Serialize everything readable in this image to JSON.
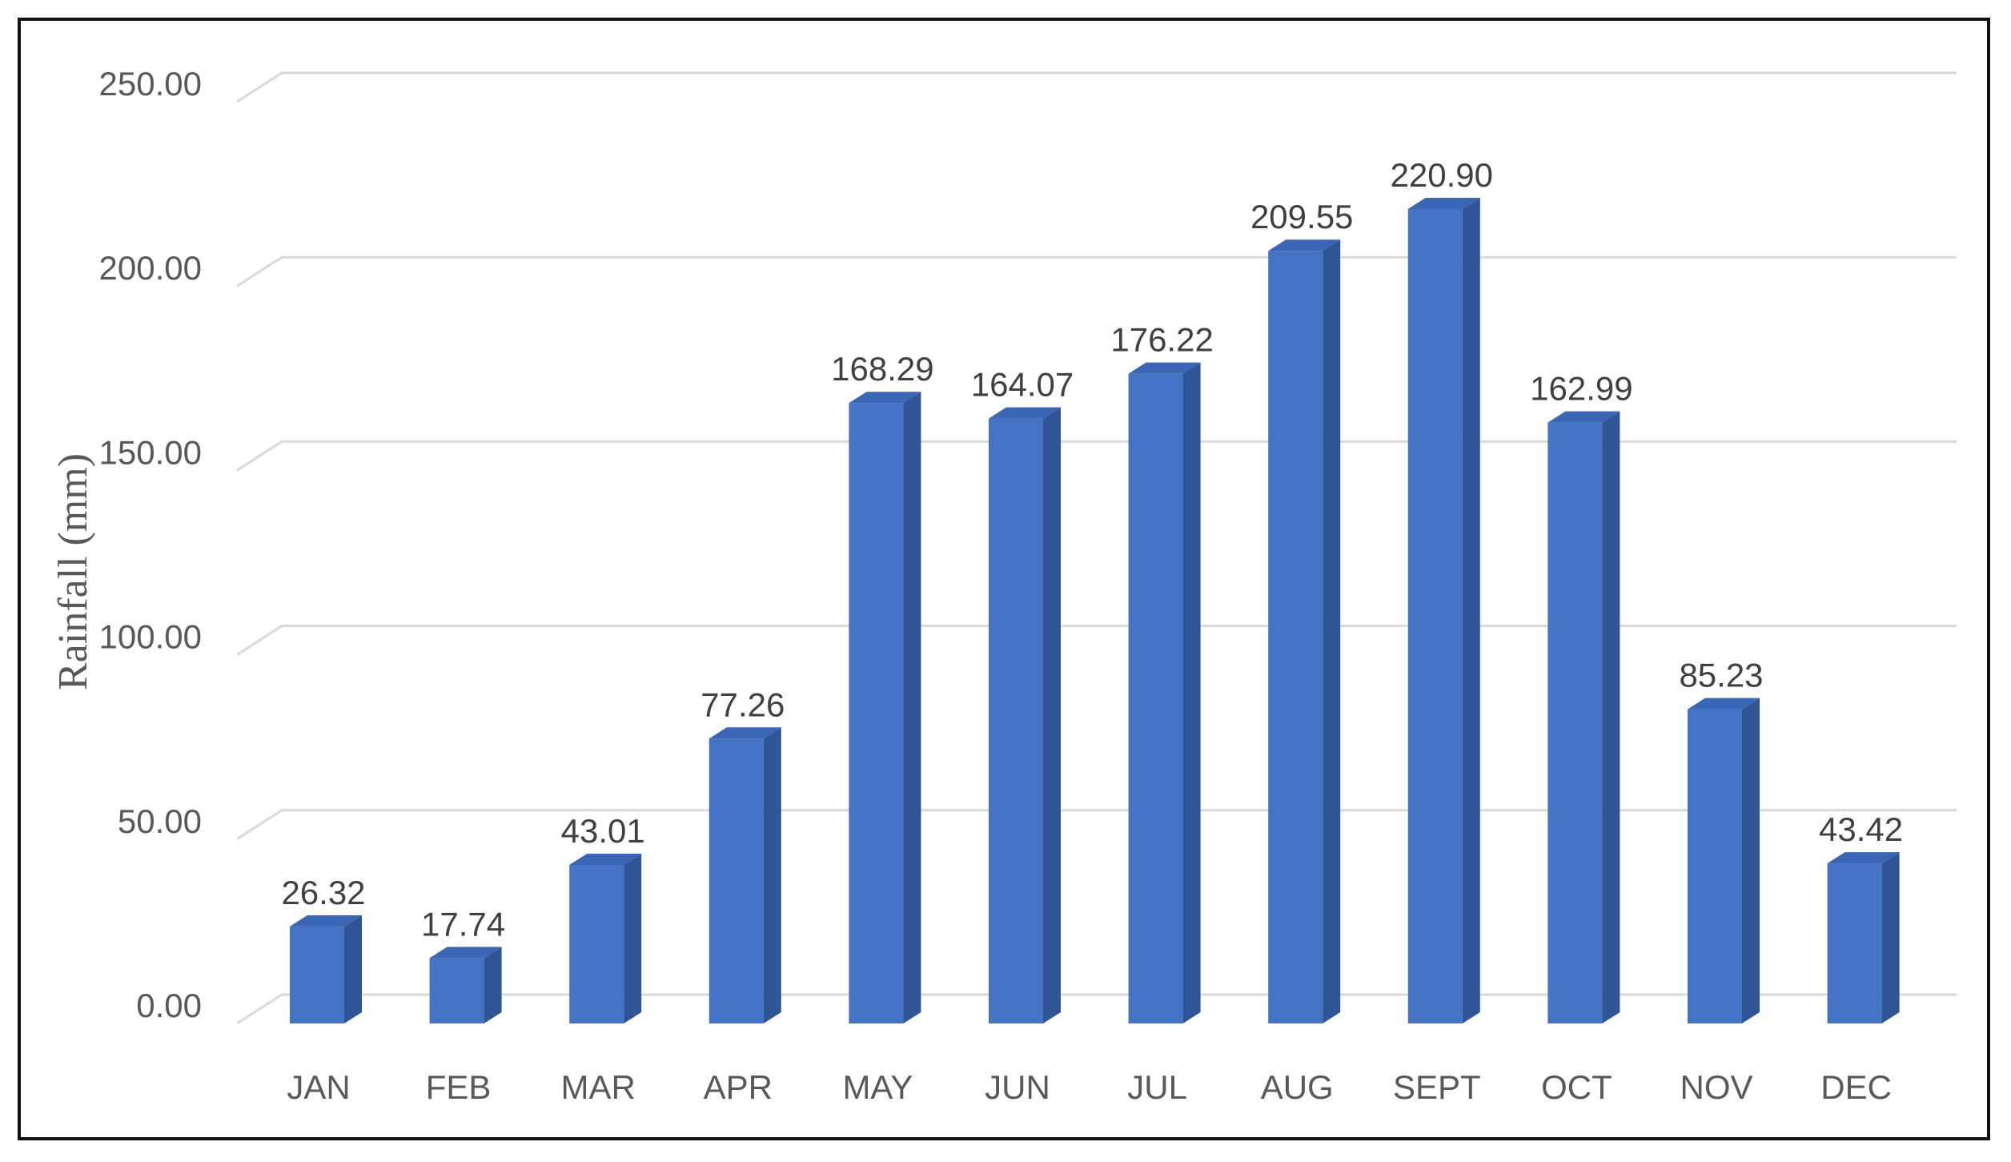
{
  "chart_data": {
    "type": "bar",
    "style": "3d-column",
    "categories": [
      "JAN",
      "FEB",
      "MAR",
      "APR",
      "MAY",
      "JUN",
      "JUL",
      "AUG",
      "SEPT",
      "OCT",
      "NOV",
      "DEC"
    ],
    "values": [
      26.32,
      17.74,
      43.01,
      77.26,
      168.29,
      164.07,
      176.22,
      209.55,
      220.9,
      162.99,
      85.23,
      43.42
    ],
    "value_labels": [
      "26.32",
      "17.74",
      "43.01",
      "77.26",
      "168.29",
      "164.07",
      "176.22",
      "209.55",
      "220.90",
      "162.99",
      "85.23",
      "43.42"
    ],
    "title": "",
    "xlabel": "",
    "ylabel": "Rainfall (mm)",
    "ylim": [
      0,
      250
    ],
    "yticks": [
      "0.00",
      "50.00",
      "100.00",
      "150.00",
      "200.00",
      "250.00"
    ],
    "grid": true,
    "legend": "none",
    "colors": {
      "front": "#4472c4",
      "side": "#2f5597",
      "top": "#3a66b5",
      "grid": "#d9d9d9"
    }
  }
}
